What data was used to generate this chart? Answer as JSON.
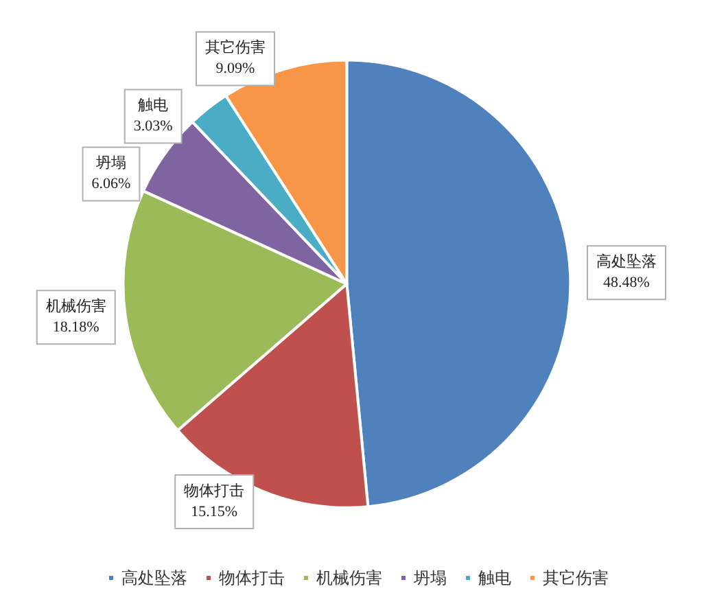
{
  "chart_data": {
    "type": "pie",
    "categories": [
      "高处坠落",
      "物体打击",
      "机械伤害",
      "坍塌",
      "触电",
      "其它伤害"
    ],
    "values": [
      48.48,
      15.15,
      18.18,
      6.06,
      3.03,
      9.09
    ],
    "value_labels": [
      "48.48%",
      "15.15%",
      "18.18%",
      "6.06%",
      "3.03%",
      "9.09%"
    ],
    "colors": [
      "#4f81bd",
      "#c0504d",
      "#9bbb59",
      "#8064a2",
      "#4bacc6",
      "#f79646"
    ],
    "legend": "bottom"
  }
}
